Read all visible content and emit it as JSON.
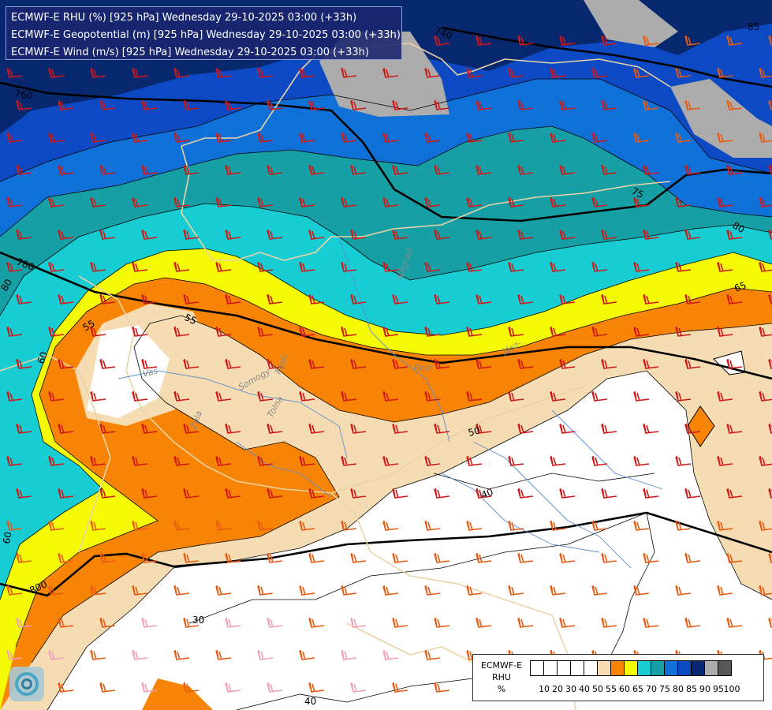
{
  "title_lines": [
    "ECMWF-E RHU (%) [925 hPa] Wednesday 29-10-2025 03:00 (+33h)",
    "ECMWF-E Geopotential (m) [925 hPa] Wednesday 29-10-2025 03:00 (+33h)",
    "ECMWF-E Wind (m/s) [925 hPa] Wednesday 29-10-2025 03:00 (+33h)"
  ],
  "legend": {
    "title_lines": [
      "ECMWF-E",
      "RHU",
      "%"
    ],
    "ticks": [
      "10",
      "20",
      "30",
      "40",
      "50",
      "55",
      "60",
      "65",
      "70",
      "75",
      "80",
      "85",
      "90",
      "95",
      "100"
    ],
    "colors": [
      "#ffffff",
      "#ffffff",
      "#ffffff",
      "#ffffff",
      "#ffffff",
      "#f6dcb3",
      "#f88405",
      "#f5fa05",
      "#17cdd3",
      "#169fa5",
      "#0f71d8",
      "#0c49c2",
      "#07286e",
      "#acacac",
      "#585858"
    ]
  },
  "geopotential_labels": [
    "740",
    "760",
    "780",
    "800"
  ],
  "rhu_labels": [
    "85",
    "75",
    "80",
    "65",
    "55",
    "55",
    "60",
    "50",
    "40",
    "30",
    "40",
    "60",
    "80"
  ],
  "place_labels": [
    "Pest",
    "Jász-",
    "Vas",
    "Zala",
    "Somogy",
    "Tolna",
    "Fejér",
    "Nógrád"
  ],
  "logo": "ecmwf-meteo-logo"
}
